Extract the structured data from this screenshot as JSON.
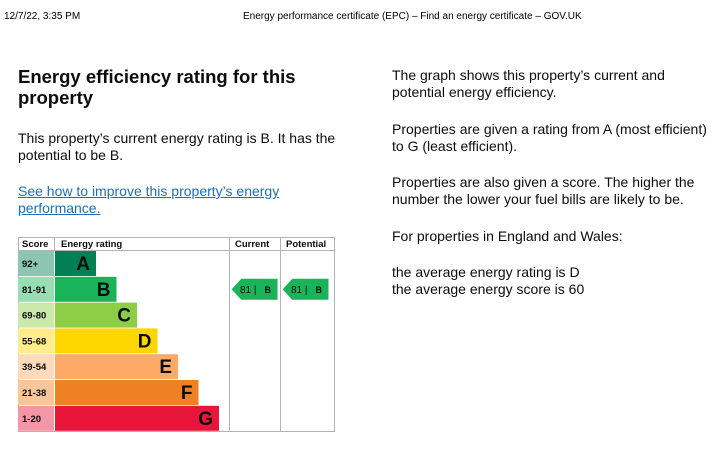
{
  "print_header": {
    "date": "12/7/22, 3:35 PM",
    "title": "Energy performance certificate (EPC) – Find an energy certificate – GOV.UK"
  },
  "main": {
    "heading": "Energy efficiency rating for this property",
    "summary": "This property’s current energy rating is B. It has the potential to be B.",
    "improve_link": "See how to improve this property’s energy performance."
  },
  "chart": {
    "headers": {
      "score": "Score",
      "rating": "Energy rating",
      "current": "Current",
      "potential": "Potential"
    },
    "bands": [
      {
        "score": "92+",
        "letter": "A",
        "color": "#008054"
      },
      {
        "score": "81-91",
        "letter": "B",
        "color": "#19b459"
      },
      {
        "score": "69-80",
        "letter": "C",
        "color": "#8dce46"
      },
      {
        "score": "55-68",
        "letter": "D",
        "color": "#ffd500"
      },
      {
        "score": "39-54",
        "letter": "E",
        "color": "#fcaa65"
      },
      {
        "score": "21-38",
        "letter": "F",
        "color": "#ef8023"
      },
      {
        "score": "1-20",
        "letter": "G",
        "color": "#e9153b"
      }
    ],
    "current": {
      "score": "81",
      "letter": "B",
      "band": "B",
      "label": "81 | B"
    },
    "potential": {
      "score": "81",
      "letter": "B",
      "band": "B",
      "label": "81 | B"
    }
  },
  "sidebar": {
    "p1": "The graph shows this property’s current and potential energy efficiency.",
    "p2": "Properties are given a rating from A (most efficient) to G (least efficient).",
    "p3": "Properties are also given a score. The higher the number the lower your fuel bills are likely to be.",
    "p4": "For properties in England and Wales:",
    "avg_rating": "the average energy rating is D",
    "avg_score": "the average energy score is 60"
  }
}
